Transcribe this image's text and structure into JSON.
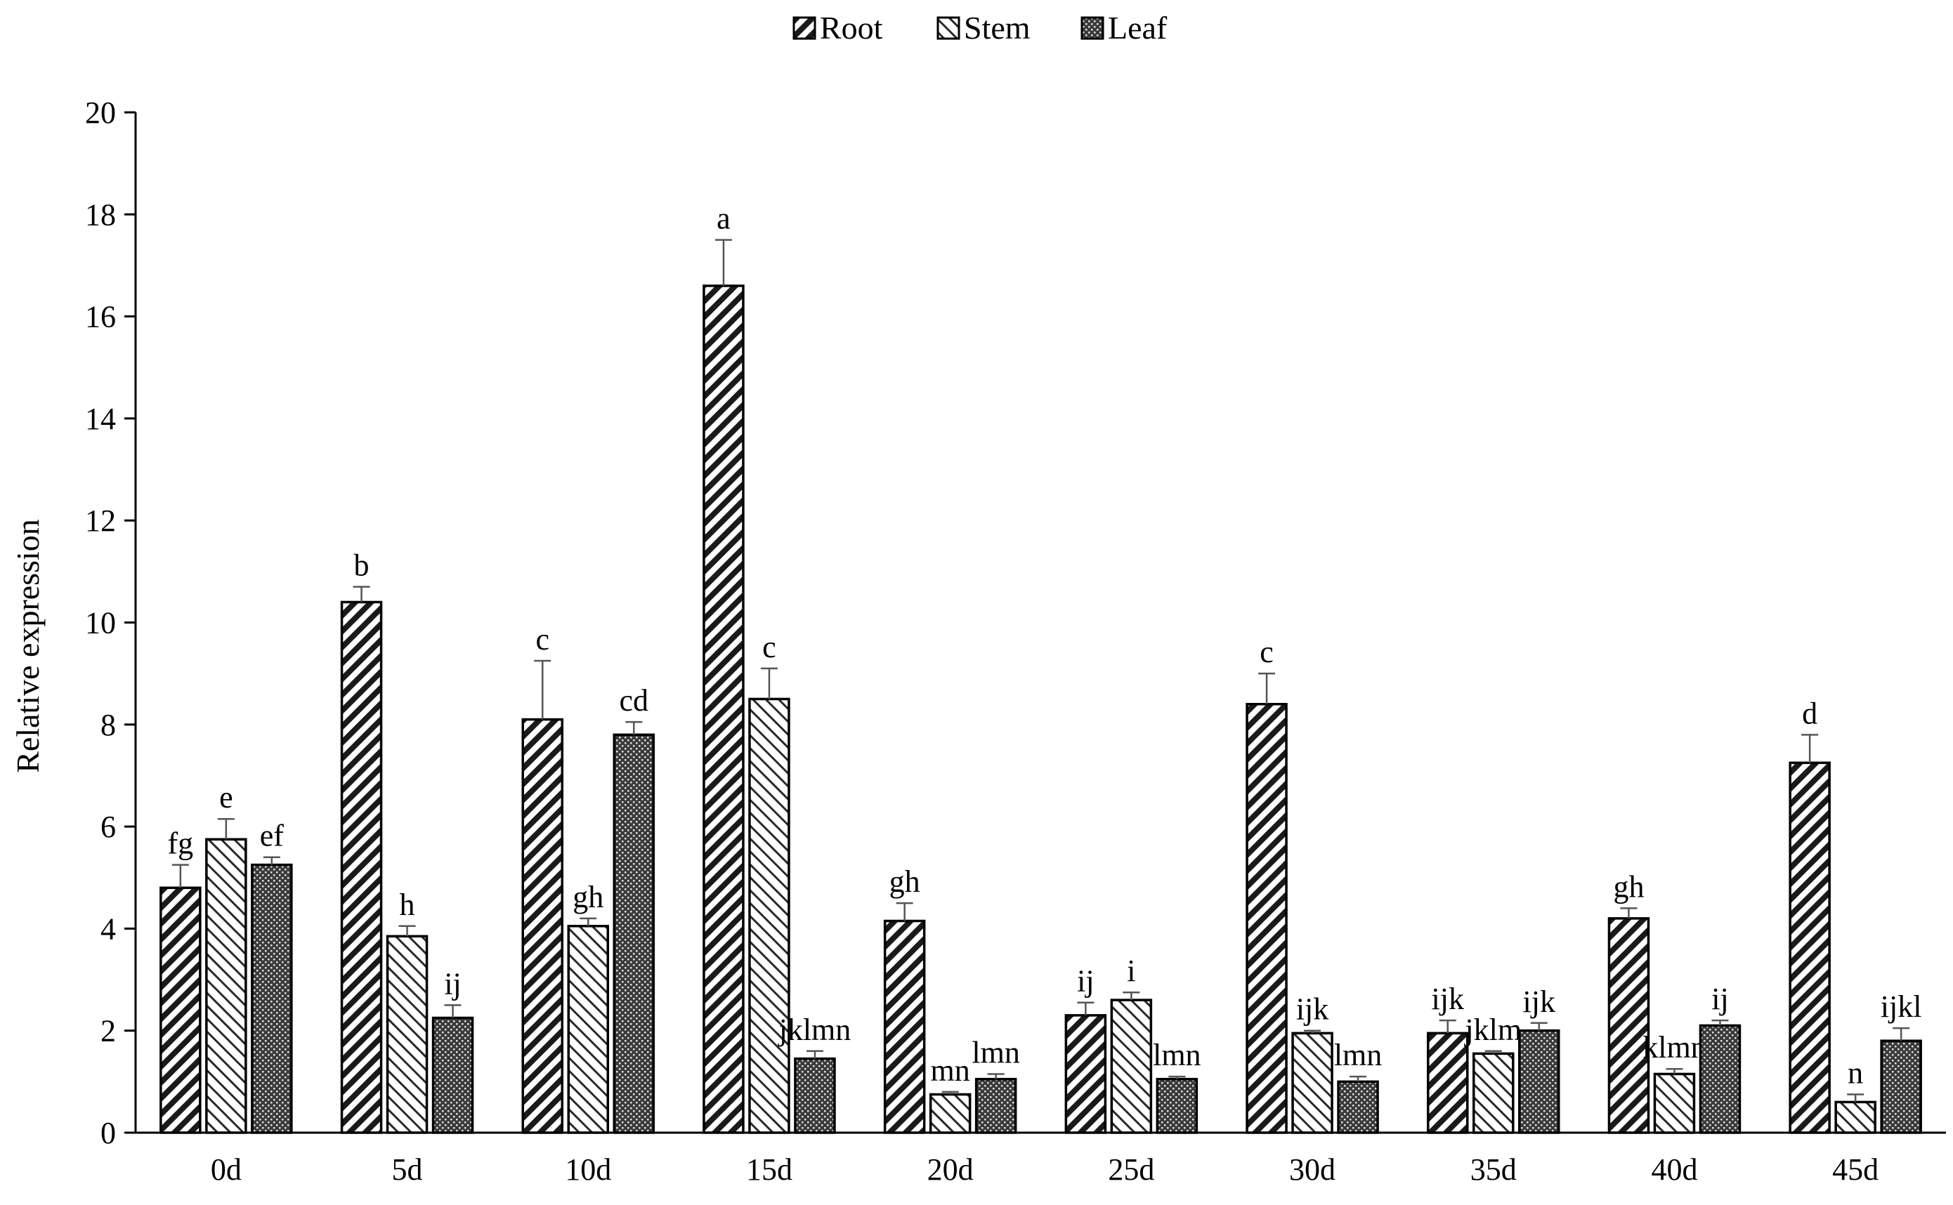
{
  "chart_data": {
    "type": "bar",
    "title": "",
    "xlabel": "",
    "ylabel": "Relative expression",
    "ylim": [
      0,
      20
    ],
    "yticks": [
      0,
      2,
      4,
      6,
      8,
      10,
      12,
      14,
      16,
      18,
      20
    ],
    "grid": false,
    "legend_position": "top-center",
    "categories": [
      "0d",
      "5d",
      "10d",
      "15d",
      "20d",
      "25d",
      "30d",
      "35d",
      "40d",
      "45d"
    ],
    "series": [
      {
        "name": "Root",
        "pattern": "dense-diagonal-stripes",
        "values": [
          4.8,
          10.4,
          8.1,
          16.6,
          4.15,
          2.3,
          8.4,
          1.95,
          4.2,
          7.25
        ],
        "errors": [
          0.45,
          0.3,
          1.15,
          0.9,
          0.35,
          0.25,
          0.6,
          0.25,
          0.2,
          0.55
        ],
        "labels": [
          "fg",
          "b",
          "c",
          "a",
          "gh",
          "ij",
          "c",
          "ijk",
          "gh",
          "d"
        ]
      },
      {
        "name": "Stem",
        "pattern": "light-diagonal-stripes",
        "values": [
          5.75,
          3.85,
          4.05,
          8.5,
          0.75,
          2.6,
          1.95,
          1.55,
          1.15,
          0.6
        ],
        "errors": [
          0.4,
          0.2,
          0.15,
          0.6,
          0.05,
          0.15,
          0.05,
          0.05,
          0.1,
          0.15
        ],
        "labels": [
          "e",
          "h",
          "gh",
          "c",
          "mn",
          "i",
          "ijk",
          "jklm",
          "klmn",
          "n"
        ]
      },
      {
        "name": "Leaf",
        "pattern": "dotted",
        "values": [
          5.25,
          2.25,
          7.8,
          1.45,
          1.05,
          1.05,
          1.0,
          2.0,
          2.1,
          1.8
        ],
        "errors": [
          0.15,
          0.25,
          0.25,
          0.15,
          0.1,
          0.05,
          0.1,
          0.15,
          0.1,
          0.25
        ],
        "labels": [
          "ef",
          "ij",
          "cd",
          "jklmn",
          "lmn",
          "lmn",
          "lmn",
          "ijk",
          "ij",
          "ijkl"
        ]
      }
    ]
  }
}
